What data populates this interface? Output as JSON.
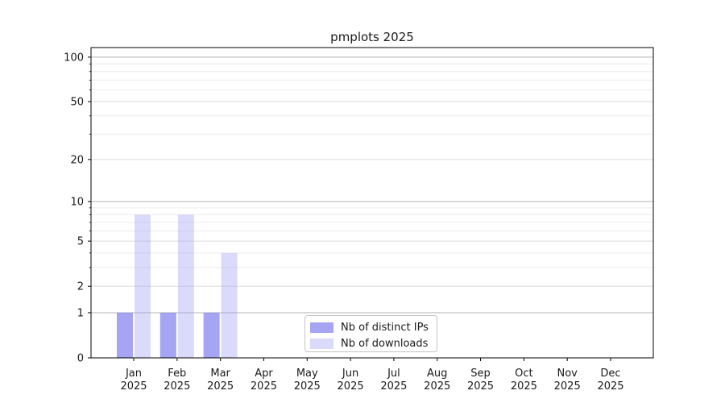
{
  "chart_data": {
    "type": "bar",
    "title": "pmplots 2025",
    "categories": [
      "Jan 2025",
      "Feb 2025",
      "Mar 2025",
      "Apr 2025",
      "May 2025",
      "Jun 2025",
      "Jul 2025",
      "Aug 2025",
      "Sep 2025",
      "Oct 2025",
      "Nov 2025",
      "Dec 2025"
    ],
    "series": [
      {
        "name": "Nb of distinct IPs",
        "color": "rgba(130,130,239,0.72)",
        "values": [
          1,
          1,
          1,
          0,
          0,
          0,
          0,
          0,
          0,
          0,
          0,
          0
        ]
      },
      {
        "name": "Nb of downloads",
        "color": "rgba(159,159,242,0.38)",
        "values": [
          8,
          8,
          4,
          0,
          0,
          0,
          0,
          0,
          0,
          0,
          0,
          0
        ]
      }
    ],
    "xlabel": "",
    "ylabel": "",
    "yscale": "log1p",
    "ylim": [
      0,
      116
    ],
    "y_major_ticks": [
      0,
      1,
      2,
      5,
      10,
      20,
      50,
      100
    ],
    "y_decade_gridlines": [
      1,
      10,
      100
    ],
    "y_mid_gridlines": [
      2,
      5,
      20,
      50
    ],
    "y_minor_gridlines": [
      3,
      4,
      6,
      7,
      8,
      9,
      30,
      40,
      60,
      70,
      80,
      90
    ],
    "grid": "horizontal",
    "legend_position": "lower center inside"
  },
  "colors": {
    "background": "#ffffff",
    "spine": "#000000",
    "grid_decade": "#b3b3b3",
    "grid_mid": "#dadada",
    "grid_minor": "#ececec",
    "tick": "#000000",
    "text": "#1a1a1a"
  }
}
